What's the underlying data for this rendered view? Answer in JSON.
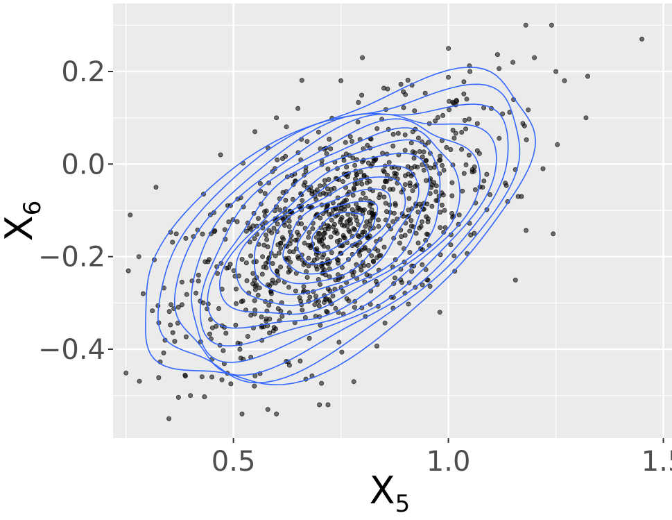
{
  "chart_data": {
    "type": "scatter",
    "title": "",
    "xlabel": {
      "base": "X",
      "sub": "5"
    },
    "ylabel": {
      "base": "X",
      "sub": "6"
    },
    "xlim": [
      0.22,
      1.52
    ],
    "ylim": [
      -0.592,
      0.347
    ],
    "x_ticks": [
      {
        "value": 0.5,
        "label": "0.5"
      },
      {
        "value": 1.0,
        "label": "1.0"
      },
      {
        "value": 1.5,
        "label": "1.5"
      }
    ],
    "y_ticks": [
      {
        "value": 0.2,
        "label": "0.2"
      },
      {
        "value": 0.0,
        "label": "0.0"
      },
      {
        "value": -0.2,
        "label": "−0.2"
      },
      {
        "value": -0.4,
        "label": "−0.4"
      }
    ],
    "grid": true,
    "legend": "none",
    "colors": {
      "panel": "#ebebeb",
      "grid": "#ffffff",
      "points": "#000000",
      "contours": "#3366ff"
    },
    "points_sample": [
      [
        0.35,
        -0.55
      ],
      [
        0.29,
        -0.28
      ],
      [
        0.26,
        -0.11
      ],
      [
        0.28,
        -0.2
      ],
      [
        0.32,
        -0.05
      ],
      [
        0.4,
        -0.5
      ],
      [
        0.45,
        -0.46
      ],
      [
        0.52,
        -0.54
      ],
      [
        0.58,
        -0.53
      ],
      [
        0.6,
        -0.54
      ],
      [
        0.7,
        -0.52
      ],
      [
        0.72,
        -0.52
      ],
      [
        0.78,
        -0.47
      ],
      [
        0.8,
        0.23
      ],
      [
        1.0,
        0.25
      ],
      [
        1.18,
        0.3
      ],
      [
        1.24,
        0.3
      ],
      [
        1.45,
        0.27
      ],
      [
        1.32,
        0.1
      ],
      [
        1.25,
        0.2
      ],
      [
        1.27,
        0.18
      ],
      [
        1.2,
        0.23
      ],
      [
        1.15,
        0.22
      ],
      [
        1.22,
        -0.01
      ],
      [
        1.17,
        -0.07
      ],
      [
        0.98,
        -0.32
      ],
      [
        0.95,
        -0.25
      ],
      [
        0.43,
        -0.3
      ],
      [
        0.47,
        0.02
      ],
      [
        0.55,
        0.07
      ],
      [
        0.6,
        0.1
      ],
      [
        0.65,
        0.12
      ],
      [
        0.75,
        0.18
      ],
      [
        0.9,
        0.15
      ],
      [
        1.05,
        0.2
      ],
      [
        1.1,
        0.12
      ],
      [
        0.7,
        -0.15
      ],
      [
        0.75,
        -0.12
      ],
      [
        0.8,
        -0.1
      ],
      [
        0.72,
        -0.18
      ],
      [
        0.65,
        -0.2
      ],
      [
        0.85,
        -0.05
      ]
    ],
    "density": {
      "center": [
        0.74,
        -0.145
      ],
      "sd_x": 0.185,
      "sd_y": 0.135,
      "correlation": 0.58,
      "contour_levels": 13
    }
  }
}
